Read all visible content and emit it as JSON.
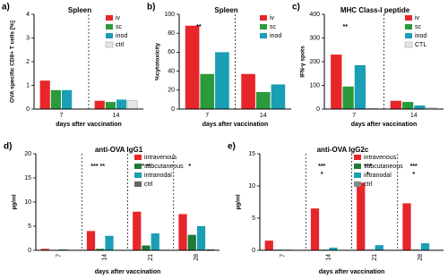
{
  "chart_data": [
    {
      "type": "bar",
      "panel": "a)",
      "title": "Spleen",
      "y_label": "OVA specific CD8+ T cells [%]",
      "x_label": "days after vaccination",
      "categories": [
        "7",
        "14"
      ],
      "ylim": [
        0,
        4
      ],
      "yticks": [
        0,
        1,
        2,
        3,
        4
      ],
      "series": [
        {
          "name": "iv",
          "color": "#e8262a",
          "values": [
            1.2,
            0.35
          ]
        },
        {
          "name": "sc",
          "color": "#2a9a3a",
          "values": [
            0.8,
            0.3
          ]
        },
        {
          "name": "inod",
          "color": "#1a9fb5",
          "values": [
            0.8,
            0.4
          ]
        },
        {
          "name": "ctrl",
          "color": "#e6e6e6",
          "values": [
            null,
            0.35
          ]
        }
      ],
      "annotations": [
        [],
        []
      ]
    },
    {
      "type": "bar",
      "panel": "b)",
      "title": "Spleen",
      "y_label": "%cytotoxicity",
      "x_label": "days after vaccination",
      "categories": [
        "7",
        "14"
      ],
      "ylim": [
        0,
        100
      ],
      "yticks": [
        0,
        20,
        40,
        60,
        80,
        100
      ],
      "series": [
        {
          "name": "iv",
          "color": "#e8262a",
          "values": [
            88,
            37
          ]
        },
        {
          "name": "sc",
          "color": "#2a9a3a",
          "values": [
            37,
            18
          ]
        },
        {
          "name": "inod",
          "color": "#1a9fb5",
          "values": [
            60,
            26
          ]
        }
      ],
      "annotations": [
        [
          "**"
        ],
        []
      ]
    },
    {
      "type": "bar",
      "panel": "c)",
      "title": "MHC Class-I peptide",
      "y_label": "IFN-γ spots",
      "x_label": "days after vaccination",
      "categories": [
        "7",
        "14"
      ],
      "ylim": [
        0,
        400
      ],
      "yticks": [
        0,
        100,
        200,
        300,
        400
      ],
      "series": [
        {
          "name": "iv",
          "color": "#e8262a",
          "values": [
            230,
            35
          ]
        },
        {
          "name": "sc",
          "color": "#2a9a3a",
          "values": [
            95,
            30
          ]
        },
        {
          "name": "inod",
          "color": "#1a9fb5",
          "values": [
            185,
            15
          ]
        },
        {
          "name": "CTL",
          "color": "#e6e6e6",
          "values": [
            2,
            5
          ]
        }
      ],
      "annotations": [
        [
          "**"
        ],
        []
      ]
    },
    {
      "type": "bar",
      "panel": "d)",
      "title": "anti-OVA IgG1",
      "y_label": "µg/ml",
      "x_label": "days after vaccination",
      "categories": [
        "7",
        "14",
        "21",
        "28"
      ],
      "ylim": [
        0,
        20
      ],
      "yticks": [
        0,
        5,
        10,
        15,
        20
      ],
      "series": [
        {
          "name": "intravenous",
          "color": "#e8262a",
          "values": [
            0.3,
            4,
            8,
            7.5
          ]
        },
        {
          "name": "subcutaneous",
          "color": "#1e7a34",
          "values": [
            0.1,
            0.3,
            1,
            3.2
          ]
        },
        {
          "name": "intranodal",
          "color": "#1a9fb5",
          "values": [
            0.2,
            3,
            3.5,
            5
          ]
        },
        {
          "name": "ctrl",
          "color": "#666666",
          "values": [
            0,
            0,
            0.1,
            0.2
          ]
        }
      ],
      "annotations": [
        [],
        [
          "*** **"
        ],
        [
          "*** **"
        ],
        [
          "*"
        ]
      ]
    },
    {
      "type": "bar",
      "panel": "e)",
      "title": "anti-OVA IgG2c",
      "y_label": "µg/ml",
      "x_label": "days after vaccination",
      "categories": [
        "7",
        "14",
        "21",
        "28"
      ],
      "ylim": [
        0,
        15
      ],
      "yticks": [
        0,
        5,
        10,
        15
      ],
      "series": [
        {
          "name": "intravenous",
          "color": "#e8262a",
          "values": [
            1.5,
            6.5,
            10.5,
            7.3
          ]
        },
        {
          "name": "subcutaneous",
          "color": "#1e7a34",
          "values": [
            0.1,
            0.1,
            0.1,
            0.1
          ]
        },
        {
          "name": "intranodal",
          "color": "#1a9fb5",
          "values": [
            0.1,
            0.4,
            0.8,
            1.1
          ]
        },
        {
          "name": "ctrl",
          "color": "#888888",
          "values": [
            0,
            0,
            0,
            0
          ]
        }
      ],
      "annotations": [
        [],
        [
          "***",
          "*"
        ],
        [
          "***",
          "*"
        ],
        [
          "***",
          "*"
        ]
      ]
    }
  ]
}
